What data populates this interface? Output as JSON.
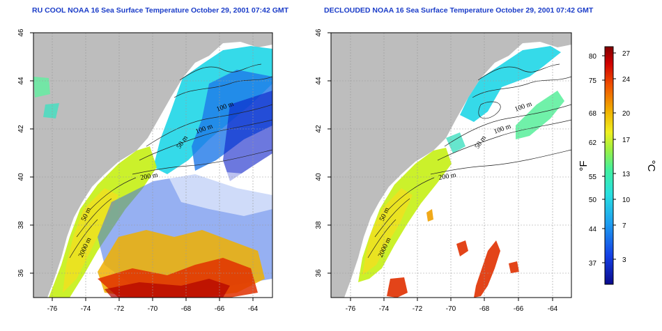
{
  "panels": [
    {
      "title": "RU COOL NOAA 16 Sea Surface Temperature October 29, 2001 07:42 GMT",
      "contour_labels": [
        "100 m",
        "100 m",
        "50 m",
        "200 m",
        "50 m",
        "2000 m"
      ]
    },
    {
      "title": "DECLOUDED NOAA 16 Sea Surface Temperature October 29, 2001 07:42 GMT",
      "contour_labels": [
        "100 m",
        "100 m",
        "50 m",
        "200 m",
        "50 m",
        "2000 m"
      ]
    }
  ],
  "axes": {
    "x_ticks": [
      "-76",
      "-74",
      "-72",
      "-70",
      "-68",
      "-66",
      "-64"
    ],
    "y_ticks": [
      "36",
      "38",
      "40",
      "42",
      "44",
      "46"
    ]
  },
  "colorbar": {
    "fahrenheit_label": "°F",
    "celsius_label": "°C",
    "fahrenheit_ticks": [
      "80",
      "75",
      "68",
      "62",
      "55",
      "50",
      "44",
      "37"
    ],
    "celsius_ticks": [
      "27",
      "24",
      "20",
      "17",
      "13",
      "10",
      "7",
      "3"
    ]
  },
  "colors": {
    "land": "#bdbdbd",
    "title": "#1a3cc8",
    "grid": "#9a9a9a"
  }
}
